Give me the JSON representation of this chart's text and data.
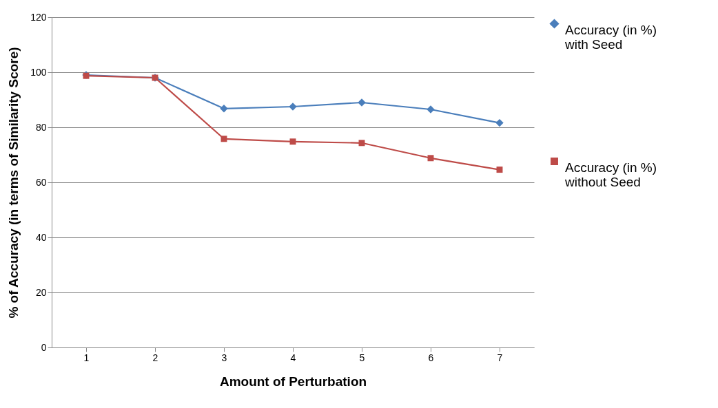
{
  "chart_data": {
    "type": "line",
    "xlabel": "Amount of Perturbation",
    "ylabel": "% of Accuracy (in terms of Similarity Score)",
    "categories": [
      "1",
      "2",
      "3",
      "4",
      "5",
      "6",
      "7"
    ],
    "ylim": [
      0,
      120
    ],
    "yticks": [
      0,
      20,
      40,
      60,
      80,
      100,
      120
    ],
    "grid": "y",
    "legend": "right",
    "series": [
      {
        "name": "Accuracy (in %) with Seed",
        "color": "#4a7ebb",
        "marker": "diamond",
        "values": [
          99,
          98,
          86.8,
          87.5,
          89,
          86.5,
          81.6
        ]
      },
      {
        "name": "Accuracy (in %) without Seed",
        "color": "#be4b48",
        "marker": "square",
        "values": [
          98.7,
          98,
          75.8,
          74.8,
          74.3,
          68.8,
          64.6
        ]
      }
    ]
  }
}
